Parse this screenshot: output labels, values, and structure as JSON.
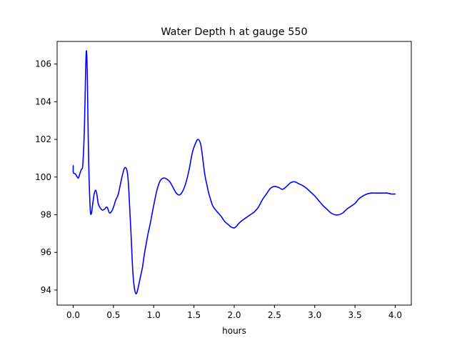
{
  "chart_data": {
    "type": "line",
    "title": "Water Depth h at gauge 550",
    "xlabel": "hours",
    "ylabel": "",
    "xlim": [
      -0.2,
      4.2
    ],
    "ylim": [
      93.2,
      107.2
    ],
    "xticks": [
      0.0,
      0.5,
      1.0,
      1.5,
      2.0,
      2.5,
      3.0,
      3.5,
      4.0
    ],
    "xtick_labels": [
      "0.0",
      "0.5",
      "1.0",
      "1.5",
      "2.0",
      "2.5",
      "3.0",
      "3.5",
      "4.0"
    ],
    "yticks": [
      94,
      96,
      98,
      100,
      102,
      104,
      106
    ],
    "ytick_labels": [
      "94",
      "96",
      "98",
      "100",
      "102",
      "104",
      "106"
    ],
    "grid": false,
    "line_color": "#0000ff",
    "series": [
      {
        "x": [
          0.0,
          0.0,
          0.01,
          0.03,
          0.05,
          0.065,
          0.08,
          0.1,
          0.12,
          0.14,
          0.155,
          0.165,
          0.175,
          0.19,
          0.21,
          0.225,
          0.24,
          0.26,
          0.28,
          0.295,
          0.31,
          0.33,
          0.36,
          0.39,
          0.42,
          0.45,
          0.48,
          0.5,
          0.53,
          0.56,
          0.6,
          0.63,
          0.65,
          0.67,
          0.685,
          0.7,
          0.72,
          0.74,
          0.76,
          0.78,
          0.8,
          0.82,
          0.84,
          0.86,
          0.88,
          0.9,
          0.93,
          0.96,
          1.0,
          1.04,
          1.08,
          1.12,
          1.16,
          1.2,
          1.24,
          1.28,
          1.32,
          1.36,
          1.4,
          1.44,
          1.48,
          1.52,
          1.55,
          1.58,
          1.6,
          1.62,
          1.64,
          1.66,
          1.68,
          1.7,
          1.73,
          1.76,
          1.8,
          1.84,
          1.88,
          1.92,
          1.96,
          2.0,
          2.03,
          2.06,
          2.1,
          2.15,
          2.2,
          2.25,
          2.3,
          2.35,
          2.4,
          2.45,
          2.5,
          2.55,
          2.6,
          2.65,
          2.7,
          2.75,
          2.8,
          2.85,
          2.9,
          2.95,
          3.0,
          3.05,
          3.1,
          3.15,
          3.2,
          3.25,
          3.3,
          3.35,
          3.4,
          3.45,
          3.5,
          3.55,
          3.6,
          3.65,
          3.7,
          3.75,
          3.8,
          3.85,
          3.9,
          3.95,
          4.0
        ],
        "y": [
          100.6,
          100.25,
          100.2,
          100.15,
          100.0,
          99.95,
          100.15,
          100.4,
          100.7,
          102.8,
          105.8,
          106.7,
          105.4,
          101.2,
          98.4,
          98.05,
          98.5,
          99.1,
          99.3,
          99.05,
          98.6,
          98.4,
          98.25,
          98.3,
          98.4,
          98.1,
          98.2,
          98.4,
          98.8,
          99.1,
          99.9,
          100.4,
          100.5,
          100.3,
          99.7,
          98.5,
          96.8,
          95.0,
          94.1,
          93.8,
          94.0,
          94.4,
          94.8,
          95.2,
          95.8,
          96.3,
          97.0,
          97.6,
          98.5,
          99.3,
          99.8,
          99.95,
          99.9,
          99.75,
          99.45,
          99.15,
          99.05,
          99.25,
          99.7,
          100.4,
          101.3,
          101.8,
          102.0,
          101.8,
          101.3,
          100.6,
          100.0,
          99.6,
          99.2,
          98.9,
          98.5,
          98.3,
          98.1,
          97.9,
          97.65,
          97.5,
          97.35,
          97.3,
          97.4,
          97.55,
          97.7,
          97.85,
          98.0,
          98.15,
          98.4,
          98.8,
          99.1,
          99.4,
          99.5,
          99.45,
          99.35,
          99.5,
          99.7,
          99.75,
          99.65,
          99.55,
          99.4,
          99.2,
          99.0,
          98.75,
          98.5,
          98.3,
          98.1,
          98.0,
          98.0,
          98.1,
          98.3,
          98.45,
          98.6,
          98.85,
          99.0,
          99.1,
          99.15,
          99.15,
          99.15,
          99.15,
          99.15,
          99.1,
          99.1
        ]
      }
    ]
  }
}
